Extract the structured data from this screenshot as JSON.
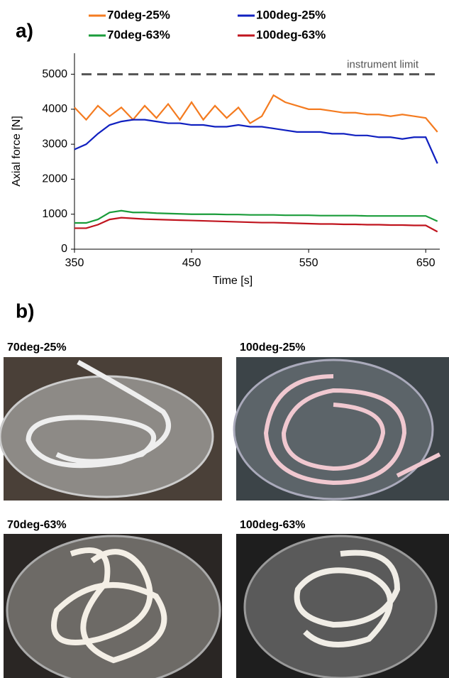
{
  "chart_data": {
    "type": "line",
    "panel_label": "a)",
    "x_label": "Time [s]",
    "y_label": "Axial force [N]",
    "x": [
      350,
      360,
      370,
      380,
      390,
      400,
      410,
      420,
      430,
      440,
      450,
      460,
      470,
      480,
      490,
      500,
      510,
      520,
      530,
      540,
      550,
      560,
      570,
      580,
      590,
      600,
      610,
      620,
      630,
      640,
      650,
      660
    ],
    "series": [
      {
        "name": "70deg-25%",
        "color": "#f47b20",
        "values": [
          4050,
          3700,
          4100,
          3800,
          4050,
          3700,
          4100,
          3750,
          4150,
          3700,
          4200,
          3700,
          4100,
          3750,
          4050,
          3600,
          3800,
          4400,
          4200,
          4100,
          4000,
          4000,
          3950,
          3900,
          3900,
          3850,
          3850,
          3800,
          3850,
          3800,
          3750,
          3350
        ]
      },
      {
        "name": "100deg-25%",
        "color": "#1020c0",
        "values": [
          2850,
          3000,
          3300,
          3550,
          3650,
          3700,
          3700,
          3650,
          3600,
          3600,
          3550,
          3550,
          3500,
          3500,
          3550,
          3500,
          3500,
          3450,
          3400,
          3350,
          3350,
          3350,
          3300,
          3300,
          3250,
          3250,
          3200,
          3200,
          3150,
          3200,
          3200,
          2450
        ]
      },
      {
        "name": "70deg-63%",
        "color": "#1a9c3a",
        "values": [
          750,
          750,
          850,
          1050,
          1100,
          1050,
          1050,
          1030,
          1020,
          1010,
          1000,
          1000,
          1000,
          990,
          990,
          980,
          980,
          980,
          970,
          970,
          970,
          960,
          960,
          960,
          960,
          950,
          950,
          950,
          950,
          950,
          950,
          800
        ]
      },
      {
        "name": "100deg-63%",
        "color": "#c0141e",
        "values": [
          600,
          600,
          700,
          850,
          900,
          880,
          860,
          850,
          840,
          830,
          820,
          810,
          800,
          790,
          780,
          770,
          760,
          760,
          750,
          740,
          730,
          720,
          720,
          710,
          710,
          700,
          700,
          690,
          690,
          680,
          680,
          500
        ]
      }
    ],
    "reference_line": {
      "value": 5000,
      "label": "instrument limit",
      "color": "#555555"
    },
    "xlim": [
      350,
      662
    ],
    "xticks": [
      350,
      450,
      550,
      650
    ],
    "ylim": [
      0,
      5600
    ],
    "yticks": [
      0,
      1000,
      2000,
      3000,
      4000,
      5000
    ],
    "grid": false
  },
  "photos": {
    "panel_label": "b)",
    "items": [
      "70deg-25%",
      "100deg-25%",
      "70deg-63%",
      "100deg-63%"
    ]
  }
}
